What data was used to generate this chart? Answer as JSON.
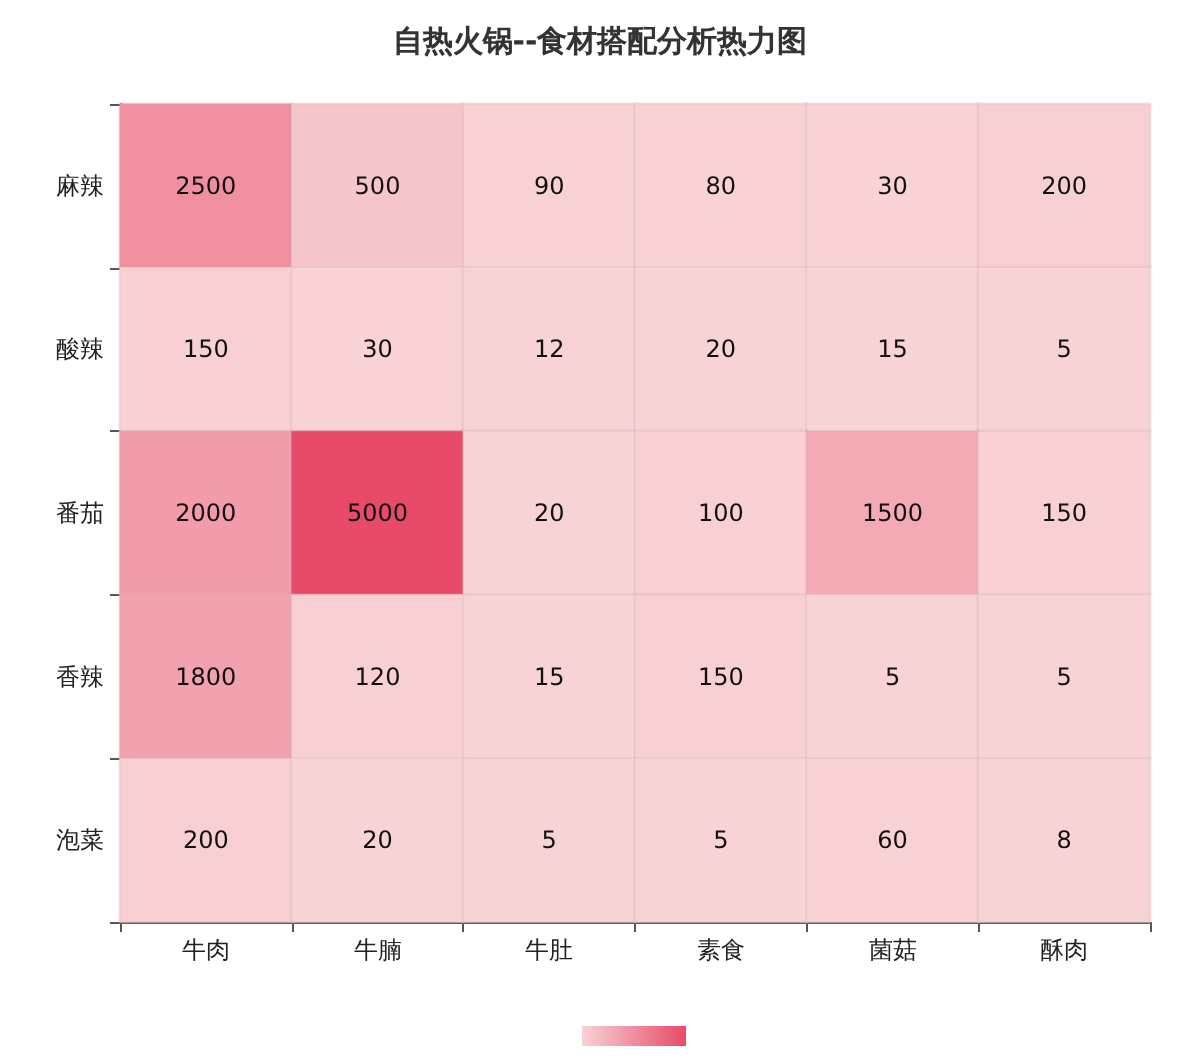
{
  "chart_data": {
    "type": "heatmap",
    "title": "自热火锅--食材搭配分析热力图",
    "categories": [
      "牛肉",
      "牛腩",
      "牛肚",
      "素食",
      "菌菇",
      "酥肉"
    ],
    "y_categories": [
      "麻辣",
      "酸辣",
      "番茄",
      "香辣",
      "泡菜"
    ],
    "cells": [
      [
        2500,
        500,
        90,
        80,
        30,
        200
      ],
      [
        150,
        30,
        12,
        20,
        15,
        5
      ],
      [
        2000,
        5000,
        20,
        100,
        1500,
        150
      ],
      [
        1800,
        120,
        15,
        150,
        5,
        5
      ],
      [
        200,
        20,
        5,
        5,
        60,
        8
      ]
    ],
    "colors": [
      "#f8d3d5",
      "#e84a6a"
    ],
    "data_labels": true
  }
}
